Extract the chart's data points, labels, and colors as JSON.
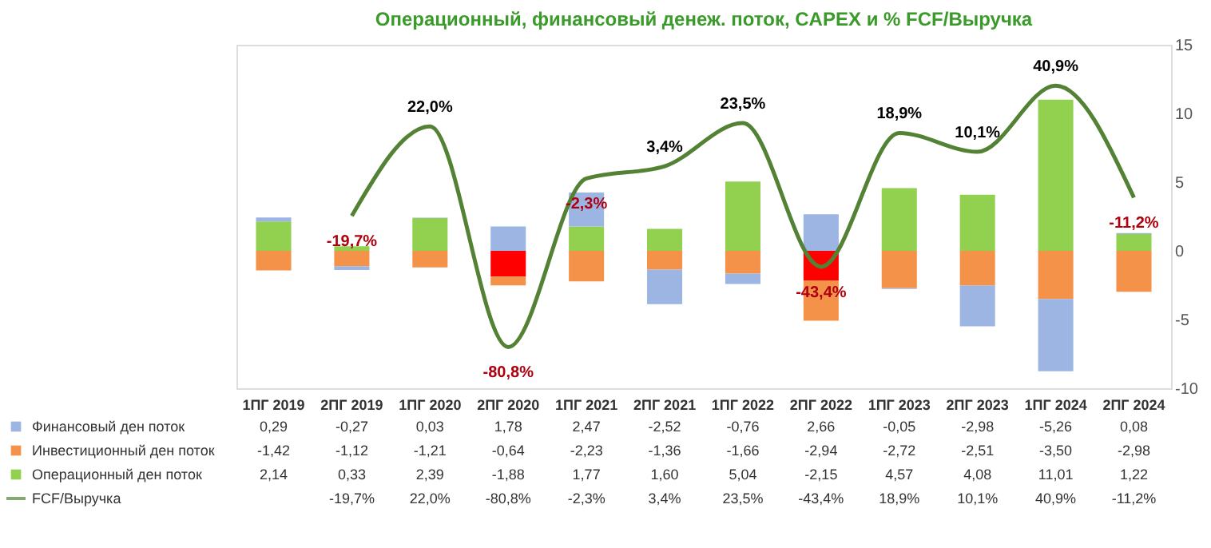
{
  "chart_data": {
    "type": "bar",
    "stacked": true,
    "title": "Операционный, финансовый денеж. поток, CAPEX и % FCF/Выручка",
    "categories": [
      "1ПГ 2019",
      "2ПГ 2019",
      "1ПГ 2020",
      "2ПГ 2020",
      "1ПГ 2021",
      "2ПГ 2021",
      "1ПГ 2022",
      "2ПГ 2022",
      "1ПГ 2023",
      "2ПГ 2023",
      "1ПГ 2024",
      "2ПГ 2024"
    ],
    "series": [
      {
        "name": "Операционный ден поток",
        "color": "#92d050",
        "colors": [
          "#92d050",
          "#92d050",
          "#92d050",
          "#ff0000",
          "#92d050",
          "#92d050",
          "#92d050",
          "#ff0000",
          "#92d050",
          "#92d050",
          "#92d050",
          "#92d050"
        ],
        "values": [
          2.14,
          0.33,
          2.39,
          -1.88,
          1.77,
          1.6,
          5.04,
          -2.15,
          4.57,
          4.08,
          11.01,
          1.22
        ],
        "value_labels": [
          "2,14",
          "0,33",
          "2,39",
          "-1,88",
          "1,77",
          "1,60",
          "5,04",
          "-2,15",
          "4,57",
          "4,08",
          "11,01",
          "1,22"
        ]
      },
      {
        "name": "Инвестиционный ден поток",
        "color": "#f4924a",
        "values": [
          -1.42,
          -1.12,
          -1.21,
          -0.64,
          -2.23,
          -1.36,
          -1.66,
          -2.94,
          -2.72,
          -2.51,
          -3.5,
          -2.98
        ],
        "value_labels": [
          "-1,42",
          "-1,12",
          "-1,21",
          "-0,64",
          "-2,23",
          "-1,36",
          "-1,66",
          "-2,94",
          "-2,72",
          "-2,51",
          "-3,50",
          "-2,98"
        ]
      },
      {
        "name": "Финансовый ден поток",
        "color": "#9db5e3",
        "values": [
          0.29,
          -0.27,
          0.03,
          1.78,
          2.47,
          -2.52,
          -0.76,
          2.66,
          -0.05,
          -2.98,
          -5.26,
          0.08
        ],
        "value_labels": [
          "0,29",
          "-0,27",
          "0,03",
          "1,78",
          "2,47",
          "-2,52",
          "-0,76",
          "2,66",
          "-0,05",
          "-2,98",
          "-5,26",
          "0,08"
        ]
      },
      {
        "name": "FCF/Выручка",
        "type": "line",
        "axis": "y2",
        "color": "#548235",
        "values": [
          null,
          -19.7,
          22.0,
          -80.8,
          -2.3,
          3.4,
          23.5,
          -43.4,
          18.9,
          10.1,
          40.9,
          -11.2
        ],
        "value_labels": [
          null,
          "-19,7%",
          "22,0%",
          "-80,8%",
          "-2,3%",
          "3,4%",
          "23,5%",
          "-43,4%",
          "18,9%",
          "10,1%",
          "40,9%",
          "-11,2%"
        ]
      }
    ],
    "ylim": [
      -10,
      15
    ],
    "yticks": [
      -10,
      -5,
      0,
      5,
      10,
      15
    ],
    "y2lim": [
      -100,
      60
    ],
    "legend": "bottom",
    "grid": false
  }
}
